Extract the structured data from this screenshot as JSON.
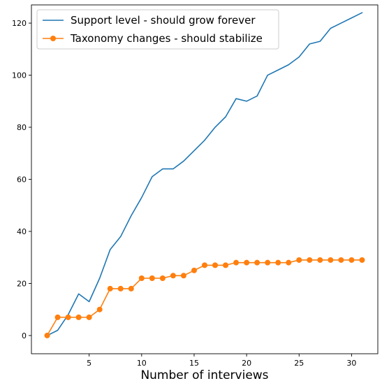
{
  "chart_data": {
    "type": "line",
    "title": "",
    "xlabel": "Number of interviews",
    "ylabel": "",
    "xlim": [
      -0.5,
      32.5
    ],
    "ylim": [
      -7,
      127
    ],
    "xticks": [
      5,
      10,
      15,
      20,
      25,
      30
    ],
    "yticks": [
      0,
      20,
      40,
      60,
      80,
      100,
      120
    ],
    "grid": false,
    "legend_position": "top-left",
    "x": [
      1,
      2,
      3,
      4,
      5,
      6,
      7,
      8,
      9,
      10,
      11,
      12,
      13,
      14,
      15,
      16,
      17,
      18,
      19,
      20,
      21,
      22,
      23,
      24,
      25,
      26,
      27,
      28,
      29,
      30,
      31
    ],
    "series": [
      {
        "name": "Support level - should grow forever",
        "color": "#1f77b4",
        "marker": "none",
        "values": [
          0,
          2,
          8,
          16,
          13,
          22,
          33,
          38,
          46,
          53,
          61,
          64,
          64,
          67,
          71,
          75,
          80,
          84,
          91,
          90,
          92,
          100,
          102,
          104,
          107,
          112,
          113,
          118,
          120,
          122,
          124
        ]
      },
      {
        "name": "Taxonomy changes - should stabilize",
        "color": "#ff7f0e",
        "marker": "circle",
        "values": [
          0,
          7,
          7,
          7,
          7,
          10,
          18,
          18,
          18,
          22,
          22,
          22,
          23,
          23,
          25,
          27,
          27,
          27,
          28,
          28,
          28,
          28,
          28,
          28,
          29,
          29,
          29,
          29,
          29,
          29,
          29
        ]
      }
    ]
  }
}
